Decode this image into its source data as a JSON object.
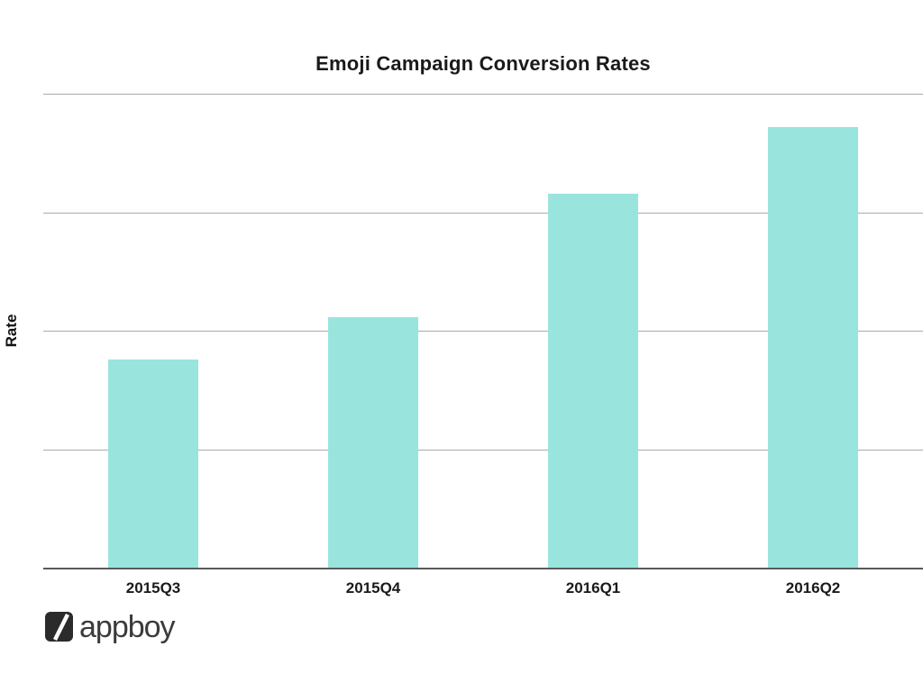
{
  "title": "Emoji Campaign Conversion Rates",
  "y_axis_label": "Rate",
  "logo": {
    "text": "appboy",
    "mark": "white-slash-in-dark-rounded-square"
  },
  "colors": {
    "bar": "#99e5de",
    "gridline": "#ababab",
    "axis": "#595959",
    "text": "#1a1a1a",
    "logo_mark": "#2b2b2b",
    "logo_text": "#3b3b3b"
  },
  "chart_data": {
    "type": "bar",
    "title": "Emoji Campaign Conversion Rates",
    "categories": [
      "2015Q3",
      "2015Q4",
      "2016Q1",
      "2016Q2"
    ],
    "values": [
      0.44,
      0.53,
      0.79,
      0.93
    ],
    "xlabel": "",
    "ylabel": "Rate",
    "ylim": [
      0,
      1
    ],
    "yticks_labeled": false,
    "value_note": "No numeric tick labels shown; values normalized to top gridline = 1.0",
    "grid": true,
    "gridline_count": 4,
    "legend": false,
    "bar_color": "#99e5de"
  }
}
